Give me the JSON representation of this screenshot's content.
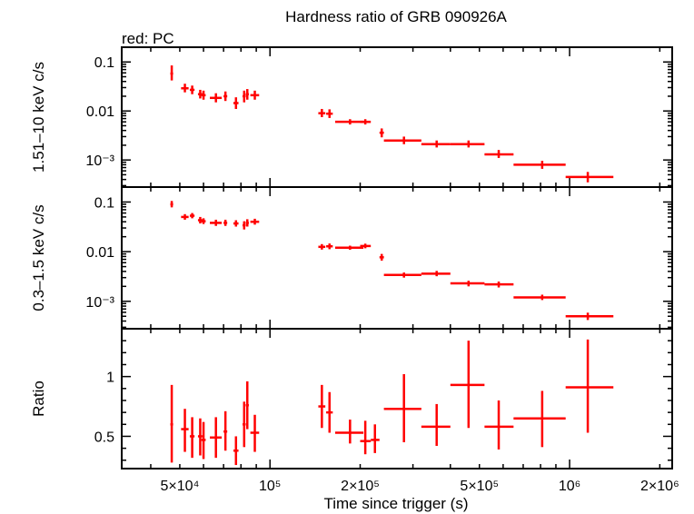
{
  "header": {
    "title": "Hardness ratio of GRB 090926A",
    "subtitle": "red: PC"
  },
  "colors": {
    "series": "#ff0000",
    "axis": "#000000"
  },
  "chart_data": {
    "type": "scatter",
    "xscale": "log",
    "xlabel": "Time since trigger (s)",
    "xlim": [
      32000,
      2200000
    ],
    "xticks": [
      {
        "value": 50000,
        "label": "5×10⁴"
      },
      {
        "value": 100000,
        "label": "10⁵"
      },
      {
        "value": 200000,
        "label": "2×10⁵"
      },
      {
        "value": 500000,
        "label": "5×10⁵"
      },
      {
        "value": 1000000,
        "label": "10⁶"
      },
      {
        "value": 2000000,
        "label": "2×10⁶"
      }
    ],
    "panels": [
      {
        "ylabel": "1.51–10 keV c/s",
        "yscale": "log",
        "ylim": [
          0.00028,
          0.2
        ],
        "yticks": [
          {
            "value": 0.1,
            "label": "0.1"
          },
          {
            "value": 0.01,
            "label": "0.01"
          },
          {
            "value": 0.001,
            "label": "10⁻³"
          }
        ],
        "points": [
          {
            "x": 47000,
            "xlo": 46500,
            "xhi": 47500,
            "y": 0.058,
            "ylo": 0.042,
            "yhi": 0.085
          },
          {
            "x": 52000,
            "xlo": 50500,
            "xhi": 53500,
            "y": 0.029,
            "ylo": 0.024,
            "yhi": 0.036
          },
          {
            "x": 55000,
            "xlo": 54000,
            "xhi": 56000,
            "y": 0.027,
            "ylo": 0.022,
            "yhi": 0.033
          },
          {
            "x": 58500,
            "xlo": 57500,
            "xhi": 59500,
            "y": 0.022,
            "ylo": 0.018,
            "yhi": 0.027
          },
          {
            "x": 60000,
            "xlo": 59000,
            "xhi": 61000,
            "y": 0.021,
            "ylo": 0.017,
            "yhi": 0.026
          },
          {
            "x": 66000,
            "xlo": 63000,
            "xhi": 69000,
            "y": 0.0185,
            "ylo": 0.015,
            "yhi": 0.023
          },
          {
            "x": 71000,
            "xlo": 70000,
            "xhi": 72000,
            "y": 0.02,
            "ylo": 0.016,
            "yhi": 0.025
          },
          {
            "x": 77000,
            "xlo": 75500,
            "xhi": 78500,
            "y": 0.0145,
            "ylo": 0.011,
            "yhi": 0.019
          },
          {
            "x": 82000,
            "xlo": 81000,
            "xhi": 83000,
            "y": 0.02,
            "ylo": 0.015,
            "yhi": 0.026
          },
          {
            "x": 84000,
            "xlo": 83000,
            "xhi": 85000,
            "y": 0.022,
            "ylo": 0.017,
            "yhi": 0.028
          },
          {
            "x": 89000,
            "xlo": 86000,
            "xhi": 92000,
            "y": 0.021,
            "ylo": 0.017,
            "yhi": 0.026
          },
          {
            "x": 149000,
            "xlo": 145000,
            "xhi": 153000,
            "y": 0.009,
            "ylo": 0.0075,
            "yhi": 0.011
          },
          {
            "x": 158000,
            "xlo": 154000,
            "xhi": 162000,
            "y": 0.0088,
            "ylo": 0.0072,
            "yhi": 0.0108
          },
          {
            "x": 185000,
            "xlo": 165000,
            "xhi": 205000,
            "y": 0.006,
            "ylo": 0.0053,
            "yhi": 0.0068
          },
          {
            "x": 208000,
            "xlo": 200000,
            "xhi": 217000,
            "y": 0.006,
            "ylo": 0.0053,
            "yhi": 0.0068
          },
          {
            "x": 236000,
            "xlo": 232000,
            "xhi": 240000,
            "y": 0.0036,
            "ylo": 0.0029,
            "yhi": 0.0044
          },
          {
            "x": 280000,
            "xlo": 240000,
            "xhi": 320000,
            "y": 0.0025,
            "ylo": 0.0021,
            "yhi": 0.003
          },
          {
            "x": 360000,
            "xlo": 320000,
            "xhi": 400000,
            "y": 0.0021,
            "ylo": 0.0018,
            "yhi": 0.0025
          },
          {
            "x": 460000,
            "xlo": 400000,
            "xhi": 520000,
            "y": 0.0021,
            "ylo": 0.0018,
            "yhi": 0.0025
          },
          {
            "x": 580000,
            "xlo": 520000,
            "xhi": 650000,
            "y": 0.0013,
            "ylo": 0.0011,
            "yhi": 0.0016
          },
          {
            "x": 810000,
            "xlo": 650000,
            "xhi": 970000,
            "y": 0.0008,
            "ylo": 0.00066,
            "yhi": 0.00096
          },
          {
            "x": 1150000,
            "xlo": 970000,
            "xhi": 1400000,
            "y": 0.00045,
            "ylo": 0.00035,
            "yhi": 0.00057
          }
        ]
      },
      {
        "ylabel": "0.3–1.5 keV c/s",
        "yscale": "log",
        "ylim": [
          0.00028,
          0.2
        ],
        "yticks": [
          {
            "value": 0.1,
            "label": "0.1"
          },
          {
            "value": 0.01,
            "label": "0.01"
          },
          {
            "value": 0.001,
            "label": "10⁻³"
          }
        ],
        "points": [
          {
            "x": 47000,
            "xlo": 46500,
            "xhi": 47500,
            "y": 0.09,
            "ylo": 0.078,
            "yhi": 0.105
          },
          {
            "x": 52000,
            "xlo": 50500,
            "xhi": 53500,
            "y": 0.05,
            "ylo": 0.044,
            "yhi": 0.057
          },
          {
            "x": 55000,
            "xlo": 54000,
            "xhi": 56000,
            "y": 0.053,
            "ylo": 0.047,
            "yhi": 0.06
          },
          {
            "x": 58500,
            "xlo": 57500,
            "xhi": 59500,
            "y": 0.043,
            "ylo": 0.037,
            "yhi": 0.05
          },
          {
            "x": 60000,
            "xlo": 59000,
            "xhi": 61000,
            "y": 0.041,
            "ylo": 0.036,
            "yhi": 0.047
          },
          {
            "x": 66000,
            "xlo": 63000,
            "xhi": 69000,
            "y": 0.038,
            "ylo": 0.033,
            "yhi": 0.044
          },
          {
            "x": 71000,
            "xlo": 70000,
            "xhi": 72000,
            "y": 0.038,
            "ylo": 0.033,
            "yhi": 0.044
          },
          {
            "x": 77000,
            "xlo": 75500,
            "xhi": 78500,
            "y": 0.037,
            "ylo": 0.032,
            "yhi": 0.043
          },
          {
            "x": 82000,
            "xlo": 81000,
            "xhi": 83000,
            "y": 0.034,
            "ylo": 0.028,
            "yhi": 0.041
          },
          {
            "x": 84000,
            "xlo": 83000,
            "xhi": 85000,
            "y": 0.038,
            "ylo": 0.032,
            "yhi": 0.045
          },
          {
            "x": 89000,
            "xlo": 86000,
            "xhi": 92000,
            "y": 0.04,
            "ylo": 0.035,
            "yhi": 0.046
          },
          {
            "x": 149000,
            "xlo": 145000,
            "xhi": 153000,
            "y": 0.0125,
            "ylo": 0.011,
            "yhi": 0.0142
          },
          {
            "x": 158000,
            "xlo": 154000,
            "xhi": 162000,
            "y": 0.0128,
            "ylo": 0.0112,
            "yhi": 0.0146
          },
          {
            "x": 185000,
            "xlo": 165000,
            "xhi": 205000,
            "y": 0.012,
            "ylo": 0.0109,
            "yhi": 0.0132
          },
          {
            "x": 208000,
            "xlo": 200000,
            "xhi": 217000,
            "y": 0.013,
            "ylo": 0.0117,
            "yhi": 0.0145
          },
          {
            "x": 236000,
            "xlo": 232000,
            "xhi": 240000,
            "y": 0.0077,
            "ylo": 0.0066,
            "yhi": 0.009
          },
          {
            "x": 280000,
            "xlo": 240000,
            "xhi": 320000,
            "y": 0.0034,
            "ylo": 0.003,
            "yhi": 0.0038
          },
          {
            "x": 360000,
            "xlo": 320000,
            "xhi": 400000,
            "y": 0.0036,
            "ylo": 0.0032,
            "yhi": 0.0041
          },
          {
            "x": 460000,
            "xlo": 400000,
            "xhi": 520000,
            "y": 0.0023,
            "ylo": 0.002,
            "yhi": 0.0026
          },
          {
            "x": 580000,
            "xlo": 520000,
            "xhi": 650000,
            "y": 0.0022,
            "ylo": 0.0019,
            "yhi": 0.0025
          },
          {
            "x": 810000,
            "xlo": 650000,
            "xhi": 970000,
            "y": 0.0012,
            "ylo": 0.00106,
            "yhi": 0.00136
          },
          {
            "x": 1150000,
            "xlo": 970000,
            "xhi": 1400000,
            "y": 0.0005,
            "ylo": 0.00042,
            "yhi": 0.00059
          }
        ]
      },
      {
        "ylabel": "Ratio",
        "yscale": "linear",
        "ylim": [
          0.23,
          1.4
        ],
        "yticks": [
          {
            "value": 0.5,
            "label": "0.5"
          },
          {
            "value": 1,
            "label": "1"
          }
        ],
        "points": [
          {
            "x": 47000,
            "xlo": 46500,
            "xhi": 47500,
            "y": 0.6,
            "ylo": 0.28,
            "yhi": 0.93
          },
          {
            "x": 52000,
            "xlo": 50500,
            "xhi": 53500,
            "y": 0.56,
            "ylo": 0.37,
            "yhi": 0.73
          },
          {
            "x": 55000,
            "xlo": 54000,
            "xhi": 56000,
            "y": 0.5,
            "ylo": 0.32,
            "yhi": 0.66
          },
          {
            "x": 58500,
            "xlo": 57500,
            "xhi": 59500,
            "y": 0.5,
            "ylo": 0.34,
            "yhi": 0.65
          },
          {
            "x": 60000,
            "xlo": 59000,
            "xhi": 61000,
            "y": 0.47,
            "ylo": 0.31,
            "yhi": 0.62
          },
          {
            "x": 66000,
            "xlo": 63000,
            "xhi": 69000,
            "y": 0.49,
            "ylo": 0.32,
            "yhi": 0.66
          },
          {
            "x": 71000,
            "xlo": 70000,
            "xhi": 72000,
            "y": 0.54,
            "ylo": 0.38,
            "yhi": 0.71
          },
          {
            "x": 77000,
            "xlo": 75500,
            "xhi": 78500,
            "y": 0.38,
            "ylo": 0.26,
            "yhi": 0.5
          },
          {
            "x": 82000,
            "xlo": 81000,
            "xhi": 83000,
            "y": 0.6,
            "ylo": 0.41,
            "yhi": 0.79
          },
          {
            "x": 84000,
            "xlo": 83000,
            "xhi": 85000,
            "y": 0.76,
            "ylo": 0.56,
            "yhi": 0.96
          },
          {
            "x": 89000,
            "xlo": 86000,
            "xhi": 92000,
            "y": 0.53,
            "ylo": 0.37,
            "yhi": 0.68
          },
          {
            "x": 149000,
            "xlo": 145000,
            "xhi": 153000,
            "y": 0.75,
            "ylo": 0.57,
            "yhi": 0.93
          },
          {
            "x": 158000,
            "xlo": 154000,
            "xhi": 162000,
            "y": 0.7,
            "ylo": 0.53,
            "yhi": 0.87
          },
          {
            "x": 185000,
            "xlo": 165000,
            "xhi": 205000,
            "y": 0.53,
            "ylo": 0.44,
            "yhi": 0.64
          },
          {
            "x": 208000,
            "xlo": 200000,
            "xhi": 217000,
            "y": 0.46,
            "ylo": 0.35,
            "yhi": 0.63
          },
          {
            "x": 224000,
            "xlo": 217000,
            "xhi": 232000,
            "y": 0.47,
            "ylo": 0.36,
            "yhi": 0.6
          },
          {
            "x": 280000,
            "xlo": 240000,
            "xhi": 320000,
            "y": 0.73,
            "ylo": 0.45,
            "yhi": 1.02
          },
          {
            "x": 360000,
            "xlo": 320000,
            "xhi": 400000,
            "y": 0.58,
            "ylo": 0.42,
            "yhi": 0.77
          },
          {
            "x": 460000,
            "xlo": 400000,
            "xhi": 520000,
            "y": 0.93,
            "ylo": 0.57,
            "yhi": 1.3
          },
          {
            "x": 580000,
            "xlo": 520000,
            "xhi": 650000,
            "y": 0.58,
            "ylo": 0.39,
            "yhi": 0.8
          },
          {
            "x": 810000,
            "xlo": 650000,
            "xhi": 970000,
            "y": 0.65,
            "ylo": 0.41,
            "yhi": 0.88
          },
          {
            "x": 1150000,
            "xlo": 970000,
            "xhi": 1400000,
            "y": 0.91,
            "ylo": 0.53,
            "yhi": 1.31
          }
        ]
      }
    ]
  }
}
